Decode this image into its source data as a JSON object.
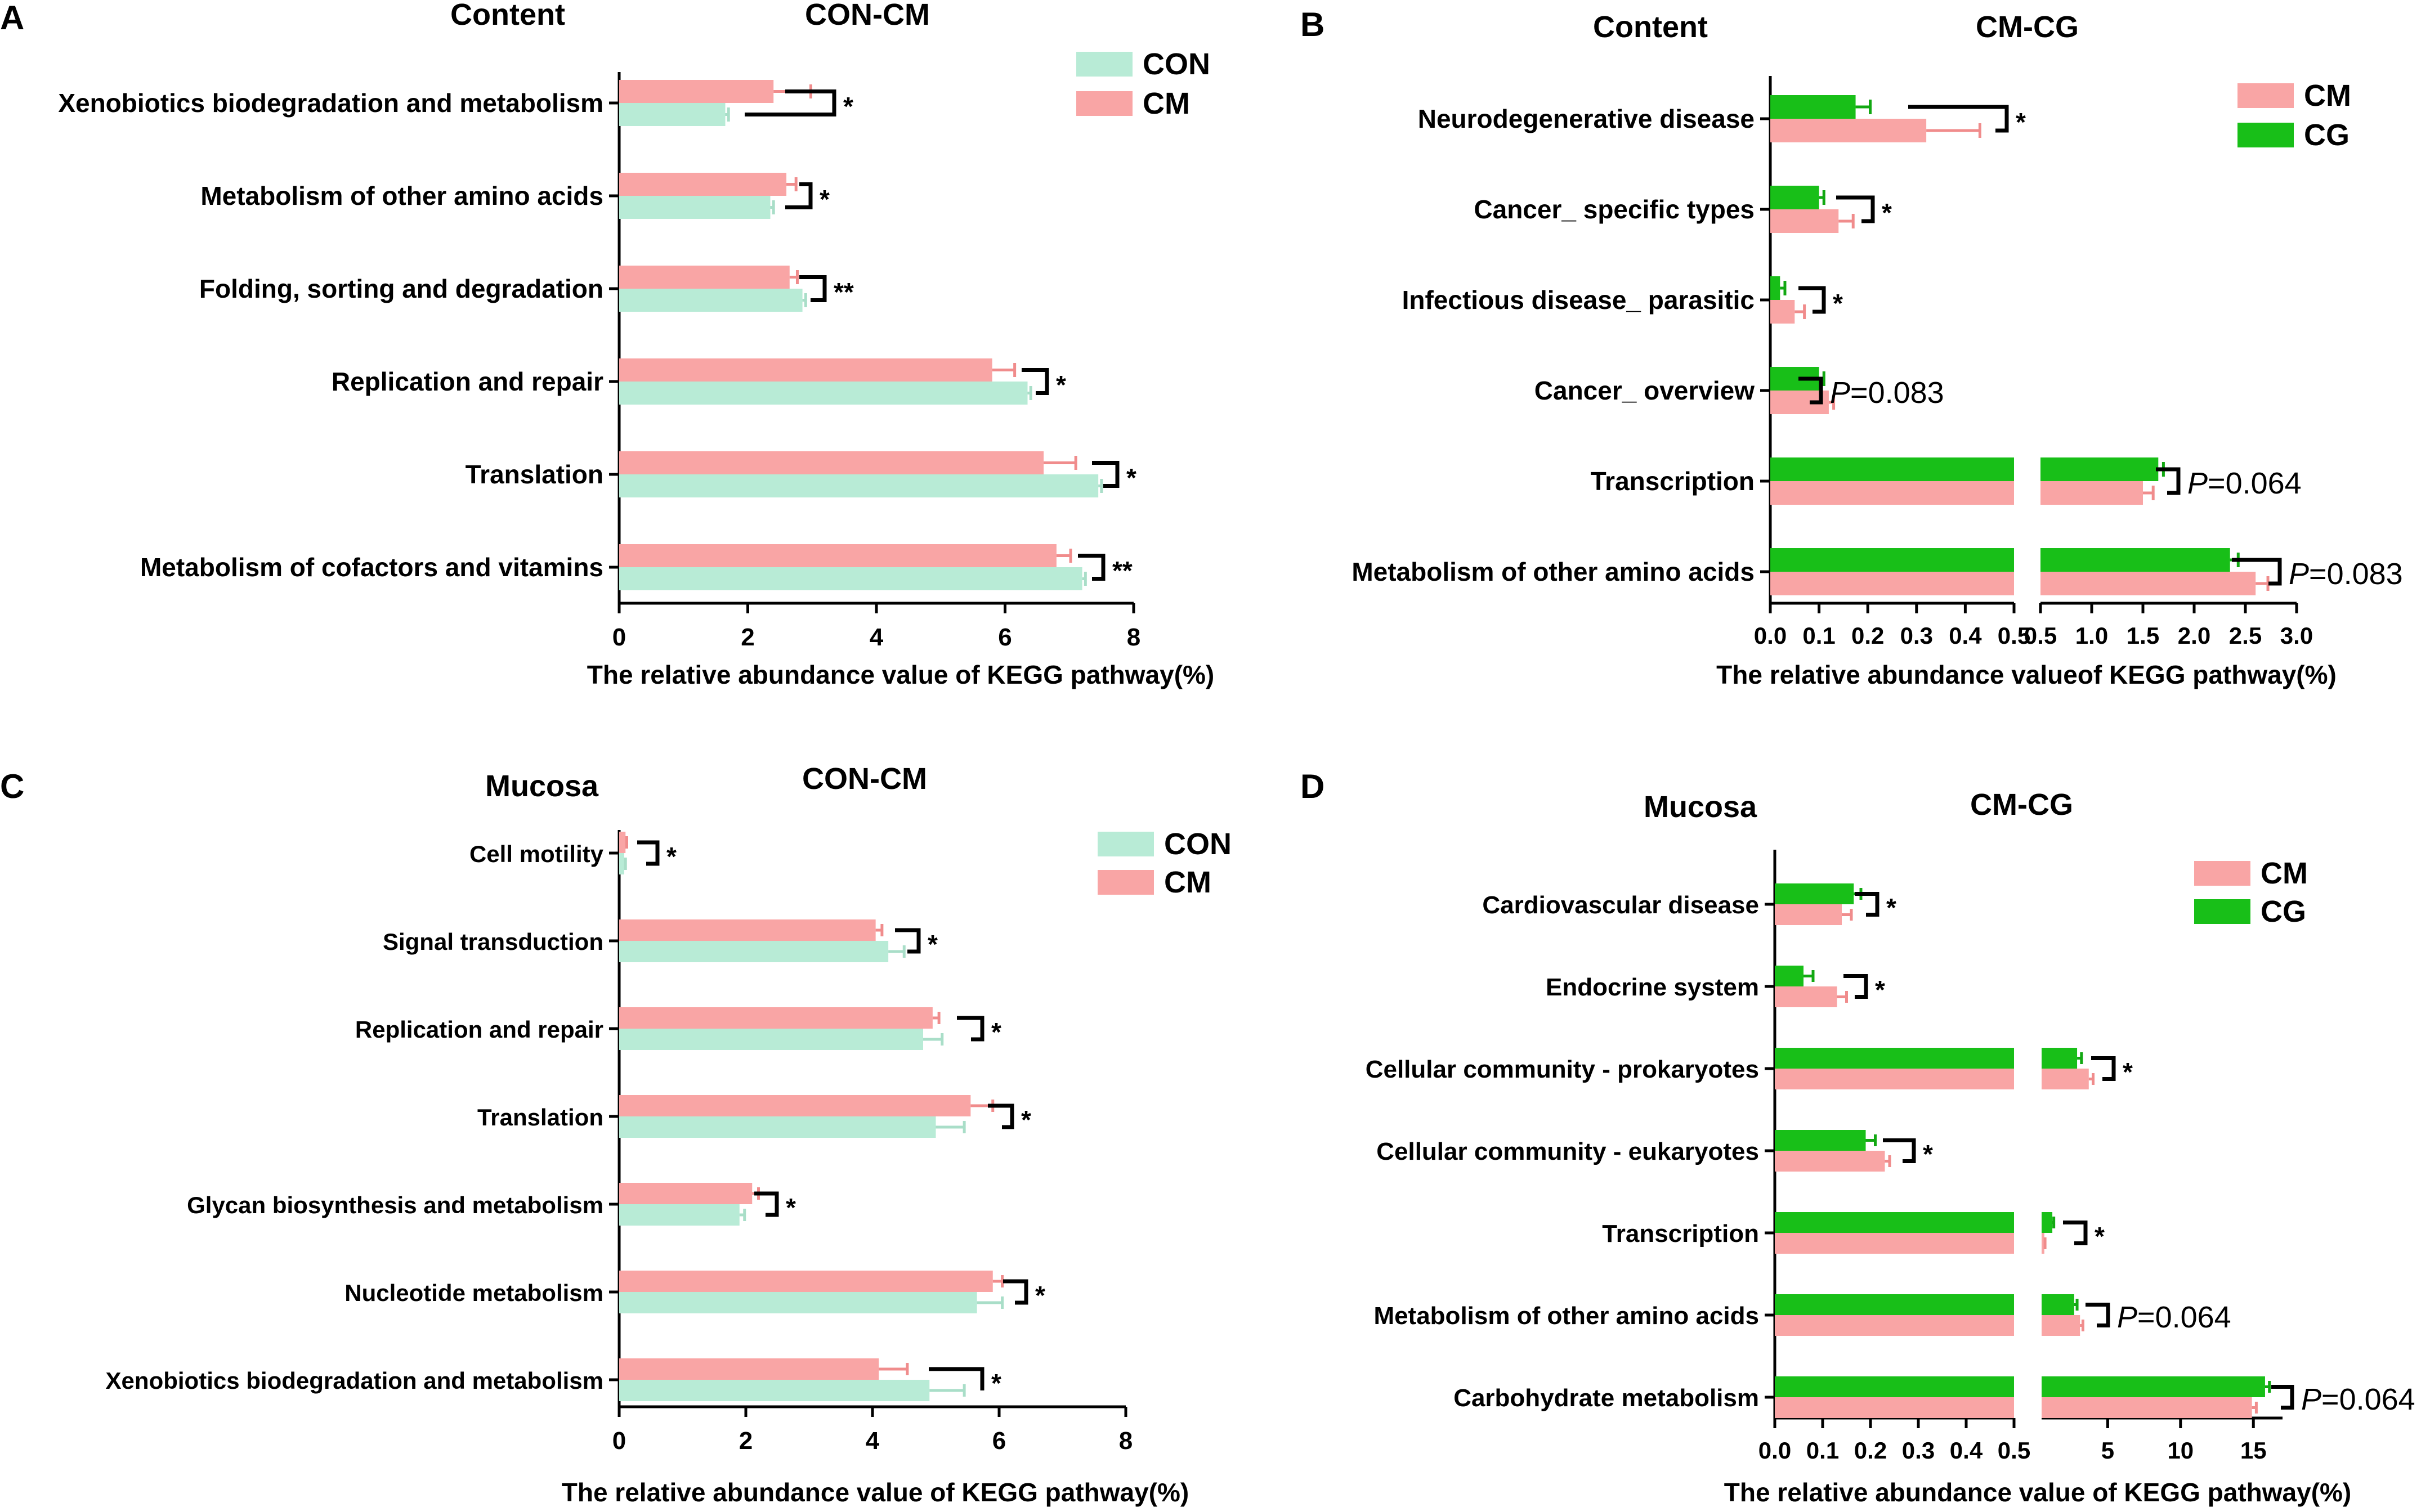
{
  "colors": {
    "con": "#b8ebd6",
    "cm": "#f9a5a5",
    "cg": "#18bf18",
    "err_con": "#a9dec8",
    "err_cm": "#f08c8c",
    "err_cg": "#12a812"
  },
  "chart_data": [
    {
      "panel": "A",
      "type": "bar",
      "orientation": "horizontal",
      "sample": "Content",
      "comparison": "CON-CM",
      "xlabel": "The relative abundance value of KEGG pathway(%)",
      "legend": [
        "CON",
        "CM"
      ],
      "legend_position": "top-right",
      "xlim": [
        0,
        8
      ],
      "ticks": [
        "0",
        "2",
        "4",
        "6",
        "8"
      ],
      "categories": [
        "Xenobiotics biodegradation and metabolism",
        "Metabolism of other amino acids",
        "Folding, sorting and degradation",
        "Replication and repair",
        "Translation",
        "Metabolism of cofactors and vitamins"
      ],
      "series": [
        {
          "name": "CM",
          "values": [
            2.4,
            2.6,
            2.65,
            5.8,
            6.6,
            6.8
          ],
          "errors": [
            0.58,
            0.15,
            0.12,
            0.35,
            0.5,
            0.22
          ]
        },
        {
          "name": "CON",
          "values": [
            1.65,
            2.35,
            2.85,
            6.35,
            7.45,
            7.2
          ],
          "errors": [
            0.05,
            0.05,
            0.05,
            0.05,
            0.05,
            0.05
          ]
        }
      ],
      "significance": [
        "*",
        "*",
        "**",
        "*",
        "*",
        "**"
      ]
    },
    {
      "panel": "B",
      "type": "bar",
      "orientation": "horizontal",
      "broken_axis": true,
      "sample": "Content",
      "comparison": "CM-CG",
      "xlabel": "The relative abundance valueof KEGG pathway(%)",
      "legend": [
        "CM",
        "CG"
      ],
      "legend_position": "top-right",
      "segments": [
        {
          "range": [
            0,
            0.5
          ],
          "ticks": [
            "0.0",
            "0.1",
            "0.2",
            "0.3",
            "0.4",
            "0.5"
          ]
        },
        {
          "range": [
            0.5,
            3.0
          ],
          "ticks": [
            "0.5",
            "1.0",
            "1.5",
            "2.0",
            "2.5",
            "3.0"
          ]
        }
      ],
      "categories": [
        "Neurodegenerative disease",
        "Cancer_ specific types",
        "Infectious disease_ parasitic",
        "Cancer_ overview",
        "Transcription",
        "Metabolism of other amino acids"
      ],
      "series": [
        {
          "name": "CG",
          "values": [
            0.175,
            0.1,
            0.02,
            0.1,
            1.65,
            2.35
          ],
          "errors": [
            0.03,
            0.01,
            0.01,
            0.01,
            0.05,
            0.08
          ]
        },
        {
          "name": "CM",
          "values": [
            0.32,
            0.14,
            0.05,
            0.12,
            1.5,
            2.6
          ],
          "errors": [
            0.11,
            0.03,
            0.02,
            0.01,
            0.1,
            0.12
          ]
        }
      ],
      "significance": [
        "*",
        "*",
        "*",
        "P=0.083",
        "P=0.064",
        "P=0.083"
      ]
    },
    {
      "panel": "C",
      "type": "bar",
      "orientation": "horizontal",
      "sample": "Mucosa",
      "comparison": "CON-CM",
      "xlabel": "The relative abundance value of KEGG pathway(%)",
      "legend": [
        "CON",
        "CM"
      ],
      "legend_position": "top-right",
      "xlim": [
        0,
        8
      ],
      "ticks": [
        "0",
        "2",
        "4",
        "6",
        "8"
      ],
      "categories": [
        "Cell motility",
        "Signal transduction",
        "Replication and repair",
        "Translation",
        "Glycan biosynthesis and metabolism",
        "Nucleotide metabolism",
        "Xenobiotics biodegradation and metabolism"
      ],
      "series": [
        {
          "name": "CM",
          "values": [
            0.1,
            4.05,
            4.95,
            5.55,
            2.1,
            5.9,
            4.1
          ],
          "errors": [
            0.02,
            0.1,
            0.1,
            0.35,
            0.1,
            0.15,
            0.45
          ]
        },
        {
          "name": "CON",
          "values": [
            0.08,
            4.25,
            4.8,
            5.0,
            1.9,
            5.65,
            4.9
          ],
          "errors": [
            0.02,
            0.25,
            0.3,
            0.45,
            0.08,
            0.4,
            0.55
          ]
        }
      ],
      "significance": [
        "*",
        "*",
        "*",
        "*",
        "*",
        "*",
        "*"
      ]
    },
    {
      "panel": "D",
      "type": "bar",
      "orientation": "horizontal",
      "broken_axis": true,
      "sample": "Mucosa",
      "comparison": "CM-CG",
      "xlabel": "The relative abundance value of KEGG pathway(%)",
      "legend": [
        "CM",
        "CG"
      ],
      "legend_position": "top-right",
      "segments": [
        {
          "range": [
            0,
            0.5
          ],
          "ticks": [
            "0.0",
            "0.1",
            "0.2",
            "0.3",
            "0.4",
            "0.5"
          ]
        },
        {
          "range": [
            0,
            17
          ],
          "ticks": [
            "5",
            "10",
            "15"
          ]
        }
      ],
      "categories": [
        "Cardiovascular disease",
        "Endocrine system",
        "Cellular community - prokaryotes",
        "Cellular community - eukaryotes",
        "Transcription",
        "Metabolism of other amino acids",
        "Carbohydrate metabolism"
      ],
      "series": [
        {
          "name": "CG",
          "values": [
            0.165,
            0.06,
            2.9,
            0.19,
            1.2,
            2.7,
            15.8
          ],
          "errors": [
            0.015,
            0.02,
            0.3,
            0.02,
            0.1,
            0.2,
            0.3
          ]
        },
        {
          "name": "CM",
          "values": [
            0.14,
            0.13,
            3.7,
            0.23,
            0.65,
            3.1,
            14.9
          ],
          "errors": [
            0.02,
            0.02,
            0.3,
            0.01,
            0.05,
            0.2,
            0.3
          ]
        }
      ],
      "significance": [
        "*",
        "*",
        "*",
        "*",
        "*",
        "P=0.064",
        "P=0.064"
      ]
    }
  ]
}
